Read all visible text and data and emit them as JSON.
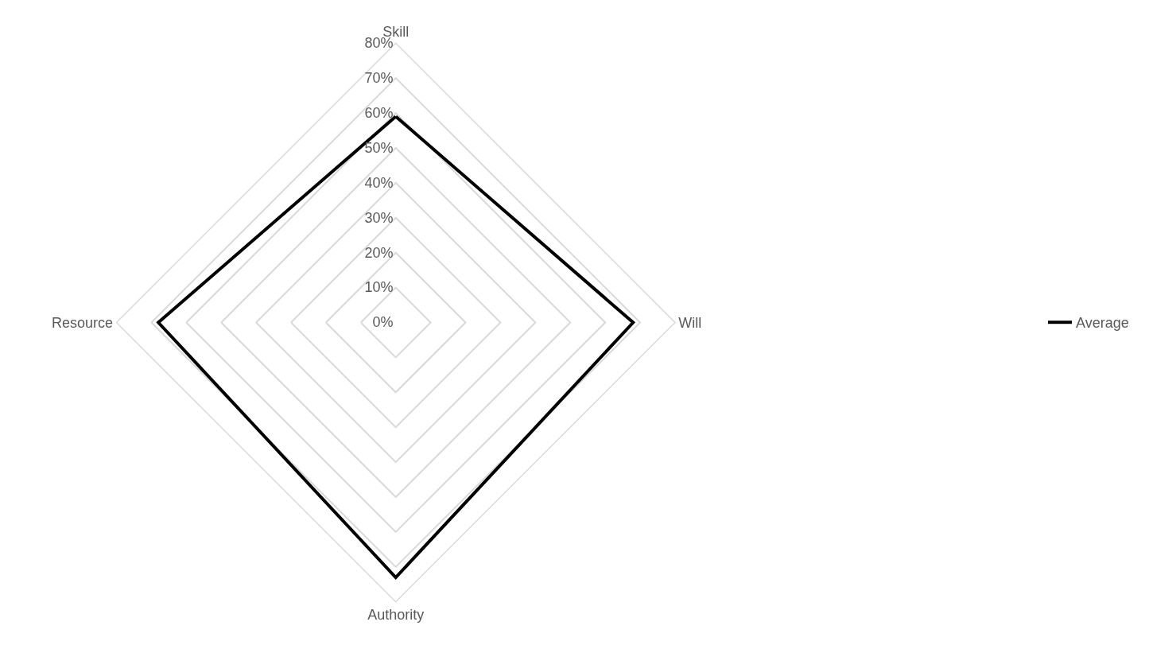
{
  "chart_data": {
    "type": "radar",
    "categories": [
      "Skill",
      "Will",
      "Authority",
      "Resource"
    ],
    "series": [
      {
        "name": "Average",
        "color": "#000000",
        "values": [
          59,
          68,
          73,
          68
        ]
      }
    ],
    "ylim": [
      0,
      80
    ],
    "yticks": [
      {
        "value": 0,
        "label": "0%"
      },
      {
        "value": 10,
        "label": "10%"
      },
      {
        "value": 20,
        "label": "20%"
      },
      {
        "value": 30,
        "label": "30%"
      },
      {
        "value": 40,
        "label": "40%"
      },
      {
        "value": 50,
        "label": "50%"
      },
      {
        "value": 60,
        "label": "60%"
      },
      {
        "value": 70,
        "label": "70%"
      },
      {
        "value": 80,
        "label": "80%"
      }
    ],
    "grid": true,
    "legend": "right",
    "marker": "none",
    "line_style": "solid"
  }
}
